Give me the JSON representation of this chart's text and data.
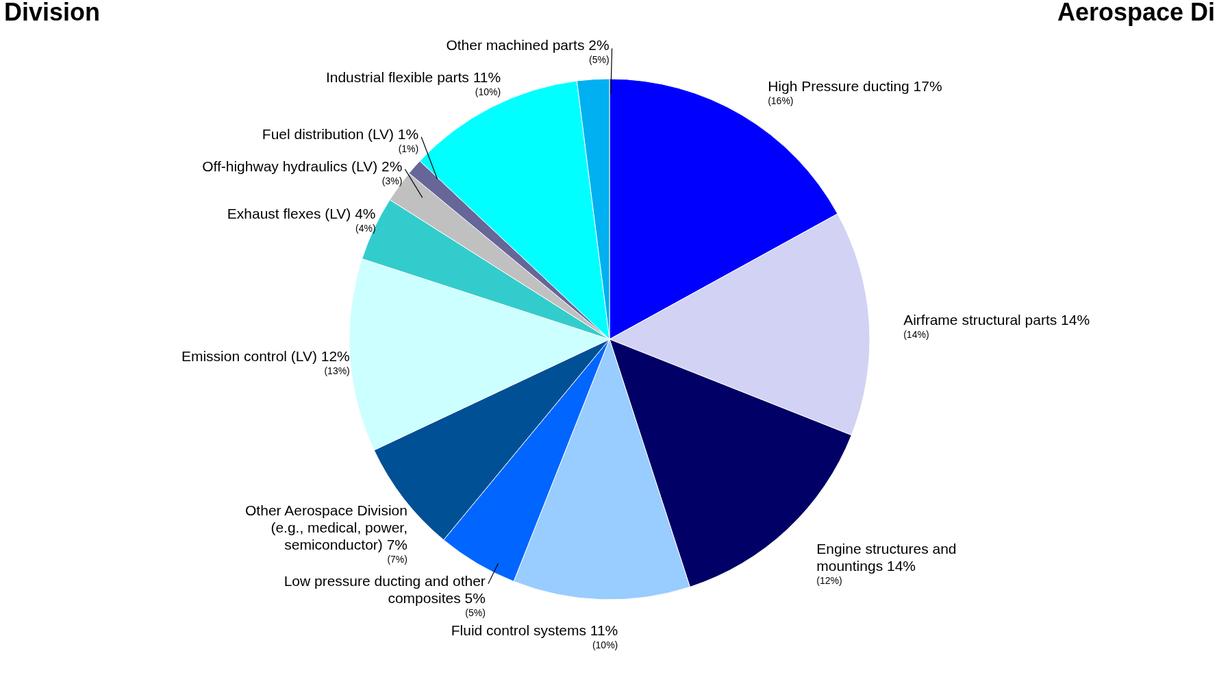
{
  "chart_data": {
    "type": "pie",
    "categories": [
      "High Pressure ducting",
      "Airframe structural parts",
      "Engine structures and mountings",
      "Fluid control systems",
      "Low pressure ducting and other composites",
      "Other Aerospace Division (e.g., medical, power, semiconductor)",
      "Emission control (LV)",
      "Exhaust flexes (LV)",
      "Off-highway hydraulics (LV)",
      "Fuel distribution (LV)",
      "Industrial flexible parts",
      "Other machined parts"
    ],
    "values": [
      17,
      14,
      14,
      11,
      5,
      7,
      12,
      4,
      2,
      1,
      11,
      2
    ],
    "value_labels": [
      "17%",
      "14%",
      "14%",
      "11%",
      "5%",
      "7%",
      "12%",
      "4%",
      "2%",
      "1%",
      "11%",
      "2%"
    ],
    "colors": [
      "#0000ff",
      "#d2d2f4",
      "#000066",
      "#99ccff",
      "#0066ff",
      "#005096",
      "#ccffff",
      "#33cccc",
      "#c0c0c0",
      "#666699",
      "#00ffff",
      "#00b0f0"
    ],
    "annotations": [
      "Division",
      "Aerospace Di",
      {
        "text": "(16%)",
        "x": "High Pressure ducting"
      },
      {
        "text": "(14%)",
        "x": "Airframe structural parts"
      },
      {
        "text": "(12%)",
        "x": "Engine structures and mountings"
      },
      {
        "text": "(10%)",
        "x": "Fluid control systems"
      },
      {
        "text": "(5%)",
        "x": "Low pressure ducting and other composites"
      },
      {
        "text": "(7%)",
        "x": "Other Aerospace Division (e.g., medical, power, semiconductor)"
      },
      {
        "text": "(13%)",
        "x": "Emission control (LV)"
      },
      {
        "text": "(4%)",
        "x": "Exhaust flexes (LV)"
      },
      {
        "text": "(3%)",
        "x": "Off-highway hydraulics (LV)"
      },
      {
        "text": "(1%)",
        "x": "Fuel distribution (LV)"
      },
      {
        "text": "(10%)",
        "x": "Industrial flexible parts"
      },
      {
        "text": "(5%)",
        "x": "Other machined parts"
      }
    ]
  }
}
